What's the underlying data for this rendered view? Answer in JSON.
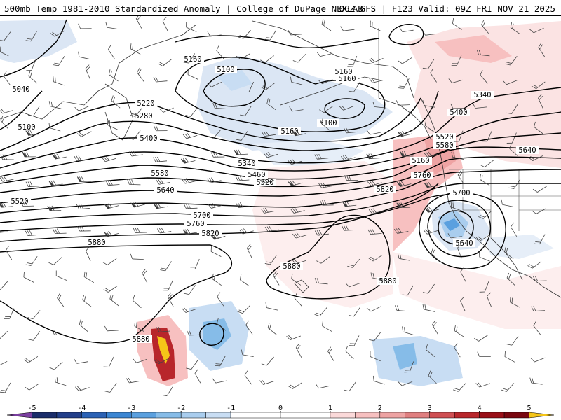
{
  "header": {
    "title_left": "500mb Temp 1981-2010 Standardized Anomaly | College of DuPage NEXLAB",
    "title_right": "06Z GFS | F123 Valid: 09Z FRI NOV 21 2025"
  },
  "colors": {
    "background": "#ffffff",
    "contour": "#000000",
    "coastline": "#333333",
    "barb": "#444444"
  },
  "contours": [
    {
      "label": "5040"
    },
    {
      "label": "5100"
    },
    {
      "label": "5160"
    },
    {
      "label": "5220"
    },
    {
      "label": "5280"
    },
    {
      "label": "5340"
    },
    {
      "label": "5400"
    },
    {
      "label": "5460"
    },
    {
      "label": "5520"
    },
    {
      "label": "5580"
    },
    {
      "label": "5640"
    },
    {
      "label": "5700"
    },
    {
      "label": "5760"
    },
    {
      "label": "5820"
    },
    {
      "label": "5880"
    }
  ],
  "contour_labels": [
    "5040",
    "5100",
    "5160",
    "5100",
    "5160",
    "5160",
    "5100",
    "5160",
    "5220",
    "5280",
    "5400",
    "5340",
    "5460",
    "5520",
    "5580",
    "5640",
    "5700",
    "5760",
    "5820",
    "5880",
    "5160",
    "5340",
    "5400",
    "5520",
    "5580",
    "5640",
    "5760",
    "5820",
    "5700",
    "5640",
    "5520",
    "5880",
    "5880",
    "5880"
  ],
  "colorbar": {
    "ticks": [
      "-5",
      "-4",
      "-3",
      "-2",
      "-1",
      "0",
      "1",
      "2",
      "3",
      "4",
      "5"
    ],
    "min": -5.5,
    "max": 5.5,
    "segments": [
      {
        "from": -5.5,
        "to": -5,
        "color": "#7b3fa0"
      },
      {
        "from": -5,
        "to": -4.5,
        "color": "#1a2d6b"
      },
      {
        "from": -4.5,
        "to": -4,
        "color": "#223f8a"
      },
      {
        "from": -4,
        "to": -3.5,
        "color": "#2b62b5"
      },
      {
        "from": -3.5,
        "to": -3,
        "color": "#3b86d3"
      },
      {
        "from": -3,
        "to": -2.5,
        "color": "#5aa0df"
      },
      {
        "from": -2.5,
        "to": -2,
        "color": "#86bce8"
      },
      {
        "from": -2,
        "to": -1.5,
        "color": "#a9cdee"
      },
      {
        "from": -1.5,
        "to": -1,
        "color": "#c8ddf3"
      },
      {
        "from": -1,
        "to": 0,
        "color": "#ffffff"
      },
      {
        "from": 0,
        "to": 1,
        "color": "#ffffff"
      },
      {
        "from": 1,
        "to": 1.5,
        "color": "#fbd9d9"
      },
      {
        "from": 1.5,
        "to": 2,
        "color": "#f7c0c0"
      },
      {
        "from": 2,
        "to": 2.5,
        "color": "#eea3a3"
      },
      {
        "from": 2.5,
        "to": 3,
        "color": "#e07f80"
      },
      {
        "from": 3,
        "to": 3.5,
        "color": "#cf4f52"
      },
      {
        "from": 3.5,
        "to": 4,
        "color": "#b8262b"
      },
      {
        "from": 4,
        "to": 4.5,
        "color": "#9a1018"
      },
      {
        "from": 4.5,
        "to": 5,
        "color": "#7a0710"
      },
      {
        "from": 5,
        "to": 5.5,
        "color": "#f5c518"
      }
    ]
  }
}
